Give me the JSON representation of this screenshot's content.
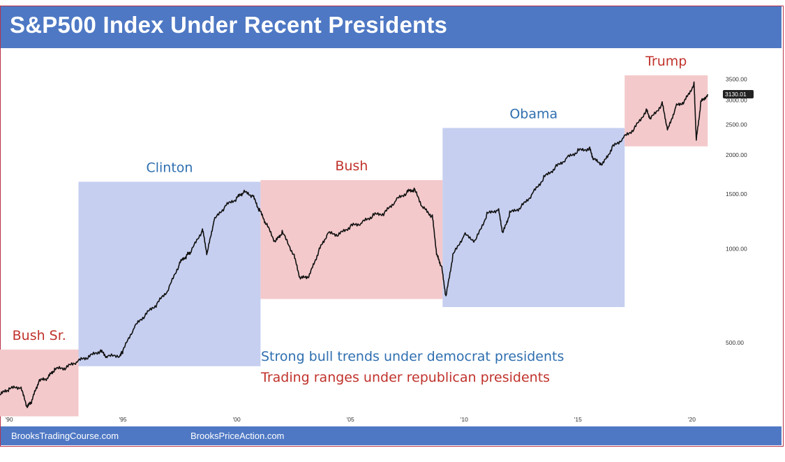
{
  "title": "S&P500 Index Under Recent Presidents",
  "footer": {
    "left": "BrooksTradingCourse.com",
    "right": "BrooksPriceAction.com"
  },
  "colors": {
    "header": "#4e78c4",
    "republican_fill": "#f4c9cb",
    "democrat_fill": "#c6cff0",
    "republican_text": "#c0322b",
    "democrat_text": "#2f6fb0",
    "price_line": "#111111"
  },
  "notes": [
    {
      "text": "Strong bull trends under democrat presidents",
      "color": "#2f6fb0"
    },
    {
      "text": "Trading ranges under republican presidents",
      "color": "#c0322b"
    }
  ],
  "chart_data": {
    "type": "line",
    "y_scale": "log",
    "ylim": [
      300,
      4200
    ],
    "xlim": [
      1989.6,
      2021.0
    ],
    "y_ticks": [
      {
        "value": 500,
        "label": "500.00"
      },
      {
        "value": 1000,
        "label": "1000.00"
      },
      {
        "value": 1500,
        "label": "1500.00"
      },
      {
        "value": 2000,
        "label": "2000.00"
      },
      {
        "value": 2500,
        "label": "2500.00"
      },
      {
        "value": 3000,
        "label": "3000.00"
      },
      {
        "value": 3500,
        "label": "3500.00"
      }
    ],
    "x_ticks": [
      {
        "value": 1990,
        "label": "'90"
      },
      {
        "value": 1995,
        "label": "'95"
      },
      {
        "value": 2000,
        "label": "'00"
      },
      {
        "value": 2005,
        "label": "'05"
      },
      {
        "value": 2010,
        "label": "'10"
      },
      {
        "value": 2015,
        "label": "'15"
      },
      {
        "value": 2020,
        "label": "'20"
      }
    ],
    "last_price": {
      "value": 3130.01,
      "label": "3130.01"
    },
    "presidents": [
      {
        "name": "Bush Sr.",
        "party": "republican",
        "start": 1989.6,
        "end": 1993.05,
        "range_low": 290,
        "range_high": 475
      },
      {
        "name": "Clinton",
        "party": "democrat",
        "start": 1993.05,
        "end": 2001.05,
        "range_low": 420,
        "range_high": 1640
      },
      {
        "name": "Bush",
        "party": "republican",
        "start": 2001.05,
        "end": 2009.05,
        "range_low": 690,
        "range_high": 1660
      },
      {
        "name": "Obama",
        "party": "democrat",
        "start": 2009.05,
        "end": 2017.05,
        "range_low": 650,
        "range_high": 2440
      },
      {
        "name": "Trump",
        "party": "republican",
        "start": 2017.05,
        "end": 2020.7,
        "range_low": 2130,
        "range_high": 3600
      }
    ],
    "series": [
      {
        "values": [
          [
            1989.6,
            340
          ],
          [
            1990.0,
            355
          ],
          [
            1990.5,
            360
          ],
          [
            1990.8,
            310
          ],
          [
            1991.0,
            325
          ],
          [
            1991.3,
            375
          ],
          [
            1991.7,
            385
          ],
          [
            1992.0,
            410
          ],
          [
            1992.5,
            415
          ],
          [
            1993.0,
            435
          ],
          [
            1993.5,
            450
          ],
          [
            1994.0,
            470
          ],
          [
            1994.3,
            450
          ],
          [
            1994.9,
            455
          ],
          [
            1995.0,
            470
          ],
          [
            1995.5,
            560
          ],
          [
            1996.0,
            615
          ],
          [
            1996.5,
            665
          ],
          [
            1997.0,
            740
          ],
          [
            1997.5,
            900
          ],
          [
            1997.8,
            950
          ],
          [
            1998.0,
            980
          ],
          [
            1998.5,
            1150
          ],
          [
            1998.7,
            960
          ],
          [
            1999.0,
            1230
          ],
          [
            1999.5,
            1370
          ],
          [
            2000.0,
            1450
          ],
          [
            2000.3,
            1520
          ],
          [
            2000.7,
            1480
          ],
          [
            2001.0,
            1330
          ],
          [
            2001.3,
            1200
          ],
          [
            2001.7,
            1050
          ],
          [
            2002.0,
            1130
          ],
          [
            2002.5,
            960
          ],
          [
            2002.8,
            800
          ],
          [
            2003.2,
            820
          ],
          [
            2003.6,
            980
          ],
          [
            2004.0,
            1120
          ],
          [
            2004.5,
            1110
          ],
          [
            2005.0,
            1180
          ],
          [
            2005.5,
            1210
          ],
          [
            2006.0,
            1280
          ],
          [
            2006.5,
            1300
          ],
          [
            2007.0,
            1430
          ],
          [
            2007.5,
            1520
          ],
          [
            2007.8,
            1550
          ],
          [
            2008.2,
            1350
          ],
          [
            2008.6,
            1270
          ],
          [
            2008.8,
            950
          ],
          [
            2009.0,
            880
          ],
          [
            2009.2,
            700
          ],
          [
            2009.5,
            950
          ],
          [
            2010.0,
            1110
          ],
          [
            2010.5,
            1060
          ],
          [
            2011.0,
            1290
          ],
          [
            2011.5,
            1340
          ],
          [
            2011.7,
            1120
          ],
          [
            2012.0,
            1300
          ],
          [
            2012.5,
            1360
          ],
          [
            2013.0,
            1500
          ],
          [
            2013.5,
            1690
          ],
          [
            2014.0,
            1820
          ],
          [
            2014.5,
            1950
          ],
          [
            2015.0,
            2060
          ],
          [
            2015.5,
            2100
          ],
          [
            2015.7,
            1930
          ],
          [
            2016.1,
            1870
          ],
          [
            2016.5,
            2110
          ],
          [
            2017.0,
            2270
          ],
          [
            2017.5,
            2440
          ],
          [
            2018.0,
            2780
          ],
          [
            2018.2,
            2610
          ],
          [
            2018.7,
            2920
          ],
          [
            2018.95,
            2400
          ],
          [
            2019.3,
            2860
          ],
          [
            2019.7,
            2980
          ],
          [
            2020.1,
            3380
          ],
          [
            2020.2,
            2230
          ],
          [
            2020.4,
            2950
          ],
          [
            2020.7,
            3130
          ]
        ]
      }
    ]
  }
}
